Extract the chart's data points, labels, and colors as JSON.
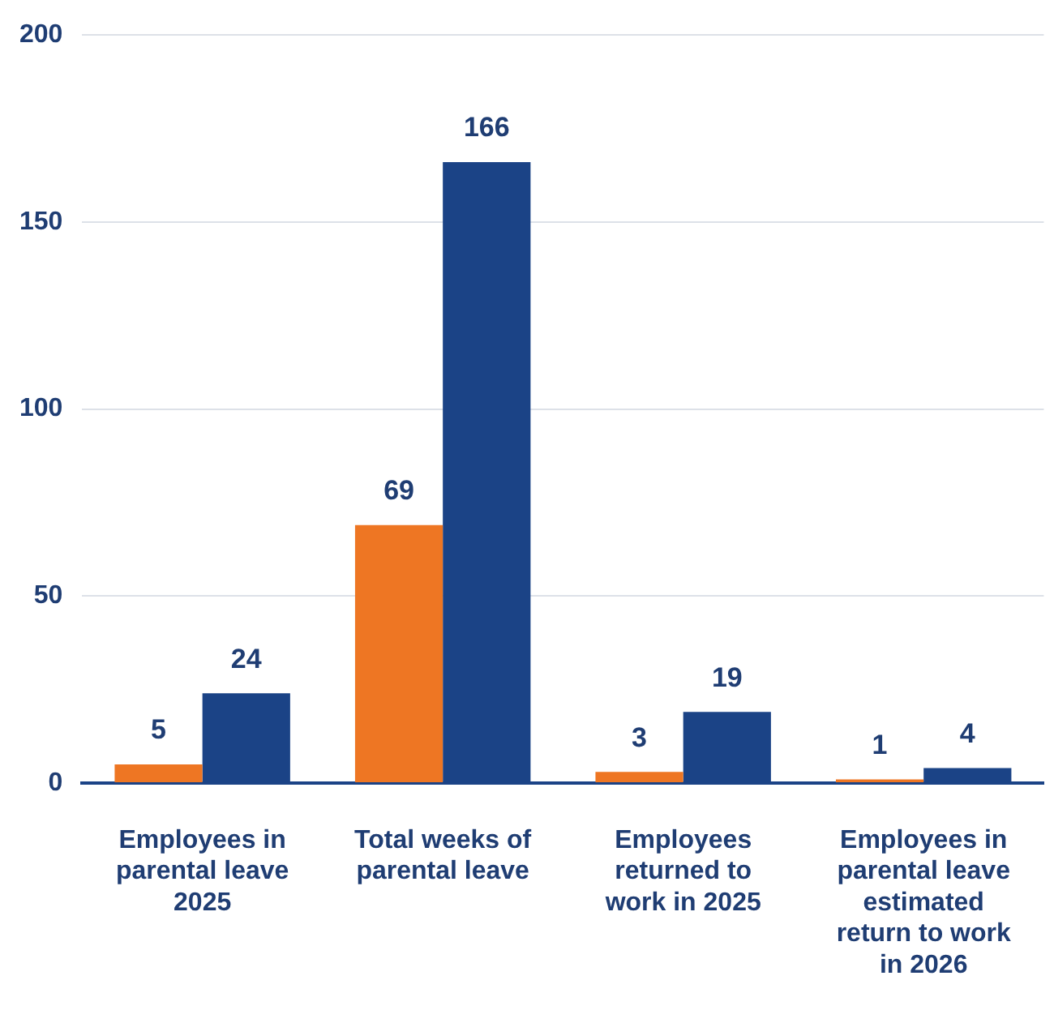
{
  "chart_data": {
    "type": "bar",
    "categories": [
      "Employees in parental leave 2025",
      "Total weeks of parental leave",
      "Employees returned to work in 2025",
      "Employees in parental leave estimated return to work in 2026"
    ],
    "series": [
      {
        "color": "#ee7623",
        "values": [
          5,
          69,
          3,
          1
        ]
      },
      {
        "color": "#1b4386",
        "values": [
          24,
          166,
          19,
          4
        ]
      }
    ],
    "ylim": [
      0,
      200
    ],
    "yticks": [
      0,
      50,
      100,
      150,
      200
    ],
    "grid": "y",
    "data_labels": true
  }
}
